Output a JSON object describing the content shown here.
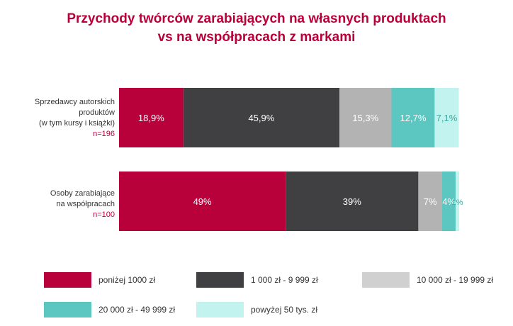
{
  "chart_data": {
    "type": "bar",
    "orientation": "horizontal",
    "stacked": true,
    "title_lines": [
      "Przychody twórców zarabiających na własnych produktach",
      "vs na współpracach z markami"
    ],
    "categories": [
      {
        "label": "Sprzedawcy autorskich\nproduktów\n(w tym kursy i książki)",
        "n": "n=196"
      },
      {
        "label": "Osoby zarabiające\nna współpracach",
        "n": "n=100"
      }
    ],
    "series": [
      {
        "name": "poniżej 1000 zł",
        "color": "#b8003a",
        "text_color": "#ffffff",
        "values": [
          18.9,
          49
        ],
        "labels": [
          "18,9%",
          "49%"
        ]
      },
      {
        "name": "1 000 zł - 9 999 zł",
        "color": "#404042",
        "text_color": "#ffffff",
        "values": [
          45.9,
          39
        ],
        "labels": [
          "45,9%",
          "39%"
        ]
      },
      {
        "name": "10 000 zł - 19 999 zł",
        "color": "#b3b3b3",
        "text_color": "#ffffff",
        "values": [
          15.3,
          7
        ],
        "labels": [
          "15,3%",
          "7%"
        ]
      },
      {
        "name": "20 000 zł - 49 999 zł",
        "color": "#5cc6c0",
        "text_color": "#ffffff",
        "values": [
          12.7,
          4
        ],
        "labels": [
          "12,7%",
          "4%"
        ]
      },
      {
        "name": "powyżej 50 tys. zł",
        "color": "#c2f3ee",
        "text_color": "#3aa8a0",
        "values": [
          7.1,
          1
        ],
        "labels": [
          "7,1%",
          "1%"
        ]
      }
    ],
    "xlim": [
      0,
      100
    ],
    "grid": false,
    "legend_position": "bottom"
  }
}
